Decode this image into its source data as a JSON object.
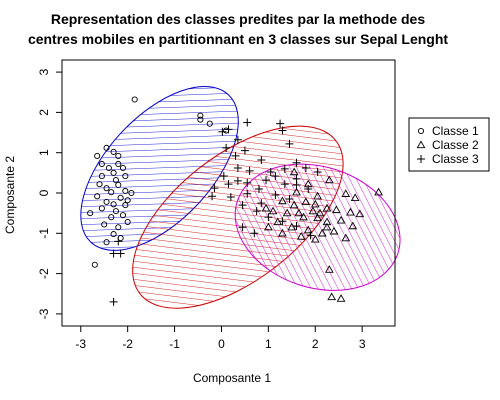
{
  "chart_data": {
    "type": "scatter",
    "title_lines": [
      "Representation des classes predites par la methode des",
      "centres mobiles en partitionnant en 3 classes sur Sepal Lenght"
    ],
    "xlabel": "Composante 1",
    "ylabel": "Composante 2",
    "xlim": [
      -3.4,
      3.7
    ],
    "ylim": [
      -3.3,
      3.3
    ],
    "xticks": [
      -3,
      -2,
      -1,
      0,
      1,
      2,
      3
    ],
    "yticks": [
      -3,
      -2,
      -1,
      0,
      1,
      2,
      3
    ],
    "grid": false,
    "legend_position": "right",
    "legend": [
      {
        "label": "Classe 1",
        "marker": "circle"
      },
      {
        "label": "Classe 2",
        "marker": "triangle"
      },
      {
        "label": "Classe 3",
        "marker": "plus"
      }
    ],
    "clusters": [
      {
        "name": "Classe 1",
        "color": "#0000cc",
        "ellipse": {
          "cx": -1.32,
          "cy": 0.61,
          "rx": 2.15,
          "ry": 1.3,
          "angle_deg": 47
        }
      },
      {
        "name": "Classe 3",
        "color": "#cc0000",
        "ellipse": {
          "cx": 0.35,
          "cy": -0.6,
          "rx": 2.65,
          "ry": 1.55,
          "angle_deg": 38
        }
      },
      {
        "name": "Classe 2",
        "color": "#cc00cc",
        "ellipse": {
          "cx": 2.05,
          "cy": -0.85,
          "rx": 1.8,
          "ry": 1.5,
          "angle_deg": -18
        }
      }
    ],
    "series": [
      {
        "name": "Classe 1",
        "marker": "circle",
        "points": [
          [
            -1.85,
            2.32
          ],
          [
            -0.45,
            1.92
          ],
          [
            -0.25,
            1.72
          ],
          [
            0.1,
            1.55
          ],
          [
            -0.45,
            1.82
          ],
          [
            -2.45,
            1.12
          ],
          [
            -2.3,
            1.02
          ],
          [
            -2.2,
            0.92
          ],
          [
            -2.65,
            0.92
          ],
          [
            -2.55,
            0.72
          ],
          [
            -2.4,
            0.62
          ],
          [
            -2.2,
            0.72
          ],
          [
            -2.1,
            0.62
          ],
          [
            -2.3,
            0.5
          ],
          [
            -2.55,
            0.42
          ],
          [
            -2.25,
            0.32
          ],
          [
            -2.05,
            0.42
          ],
          [
            -2.6,
            0.22
          ],
          [
            -2.45,
            0.12
          ],
          [
            -2.2,
            0.2
          ],
          [
            -2.05,
            0.05
          ],
          [
            -2.35,
            0.02
          ],
          [
            -2.65,
            -0.08
          ],
          [
            -2.15,
            -0.12
          ],
          [
            -2.45,
            -0.22
          ],
          [
            -2.3,
            -0.28
          ],
          [
            -2.05,
            -0.3
          ],
          [
            -2.55,
            -0.38
          ],
          [
            -2.8,
            -0.5
          ],
          [
            -2.25,
            -0.45
          ],
          [
            -2.1,
            -0.55
          ],
          [
            -2.35,
            -0.6
          ],
          [
            -2.0,
            -0.72
          ],
          [
            -2.5,
            -0.78
          ],
          [
            -2.2,
            -0.85
          ],
          [
            -2.3,
            -1.02
          ],
          [
            -2.45,
            -1.22
          ],
          [
            -2.15,
            -1.12
          ],
          [
            -2.7,
            -1.78
          ],
          [
            -1.92,
            0.0
          ],
          [
            -2.0,
            -0.18
          ]
        ]
      },
      {
        "name": "Classe 2",
        "marker": "triangle",
        "points": [
          [
            1.55,
            0.52
          ],
          [
            1.85,
            0.22
          ],
          [
            2.3,
            0.32
          ],
          [
            1.6,
            0.02
          ],
          [
            2.05,
            -0.08
          ],
          [
            2.65,
            -0.02
          ],
          [
            2.85,
            -0.12
          ],
          [
            3.35,
            0.02
          ],
          [
            1.3,
            -0.2
          ],
          [
            1.55,
            -0.3
          ],
          [
            1.8,
            -0.22
          ],
          [
            2.0,
            -0.28
          ],
          [
            2.25,
            -0.38
          ],
          [
            2.45,
            -0.42
          ],
          [
            2.75,
            -0.48
          ],
          [
            2.95,
            -0.52
          ],
          [
            1.4,
            -0.5
          ],
          [
            1.75,
            -0.6
          ],
          [
            2.05,
            -0.62
          ],
          [
            2.25,
            -0.72
          ],
          [
            2.55,
            -0.68
          ],
          [
            2.8,
            -0.82
          ],
          [
            1.2,
            -0.72
          ],
          [
            1.5,
            -0.85
          ],
          [
            1.85,
            -0.92
          ],
          [
            2.15,
            -1.0
          ],
          [
            2.4,
            -0.95
          ],
          [
            2.65,
            -1.12
          ],
          [
            1.0,
            -0.85
          ],
          [
            1.3,
            -1.0
          ],
          [
            2.3,
            -1.9
          ],
          [
            2.35,
            -2.58
          ],
          [
            2.55,
            -2.62
          ],
          [
            1.95,
            -0.45
          ],
          [
            2.1,
            -0.5
          ],
          [
            1.65,
            -0.5
          ],
          [
            1.1,
            -0.45
          ],
          [
            0.95,
            -0.38
          ],
          [
            1.7,
            -1.08
          ],
          [
            2.0,
            -1.15
          ],
          [
            2.25,
            -0.85
          ]
        ]
      },
      {
        "name": "Classe 3",
        "marker": "plus",
        "points": [
          [
            0.55,
            1.75
          ],
          [
            0.15,
            1.58
          ],
          [
            0.02,
            1.52
          ],
          [
            1.25,
            1.72
          ],
          [
            1.3,
            1.55
          ],
          [
            1.45,
            1.22
          ],
          [
            0.35,
            1.32
          ],
          [
            0.1,
            1.12
          ],
          [
            0.5,
            1.05
          ],
          [
            0.3,
            0.92
          ],
          [
            0.85,
            0.82
          ],
          [
            0.35,
            0.62
          ],
          [
            0.6,
            0.55
          ],
          [
            1.05,
            0.52
          ],
          [
            0.05,
            0.42
          ],
          [
            0.35,
            0.3
          ],
          [
            0.15,
            0.22
          ],
          [
            0.55,
            0.25
          ],
          [
            0.8,
            0.1
          ],
          [
            0.55,
            -0.02
          ],
          [
            0.2,
            -0.1
          ],
          [
            0.95,
            0.32
          ],
          [
            1.15,
            0.42
          ],
          [
            1.35,
            0.6
          ],
          [
            1.6,
            0.75
          ],
          [
            1.8,
            0.62
          ],
          [
            2.05,
            0.52
          ],
          [
            1.35,
            0.22
          ],
          [
            1.6,
            0.2
          ],
          [
            1.85,
            0.1
          ],
          [
            1.15,
            -0.05
          ],
          [
            1.45,
            -0.15
          ],
          [
            0.45,
            -0.3
          ],
          [
            0.75,
            -0.45
          ],
          [
            1.0,
            -0.6
          ],
          [
            1.3,
            -0.7
          ],
          [
            1.6,
            -0.82
          ],
          [
            1.9,
            -1.05
          ],
          [
            0.45,
            -0.85
          ],
          [
            0.7,
            -1.0
          ],
          [
            -0.2,
            -0.08
          ],
          [
            -0.15,
            0.12
          ],
          [
            0.85,
            -0.25
          ],
          [
            1.6,
            0.35
          ],
          [
            -2.2,
            -1.2
          ],
          [
            -2.15,
            -1.5
          ],
          [
            -2.3,
            -1.5
          ],
          [
            -2.3,
            -2.7
          ]
        ]
      }
    ]
  }
}
